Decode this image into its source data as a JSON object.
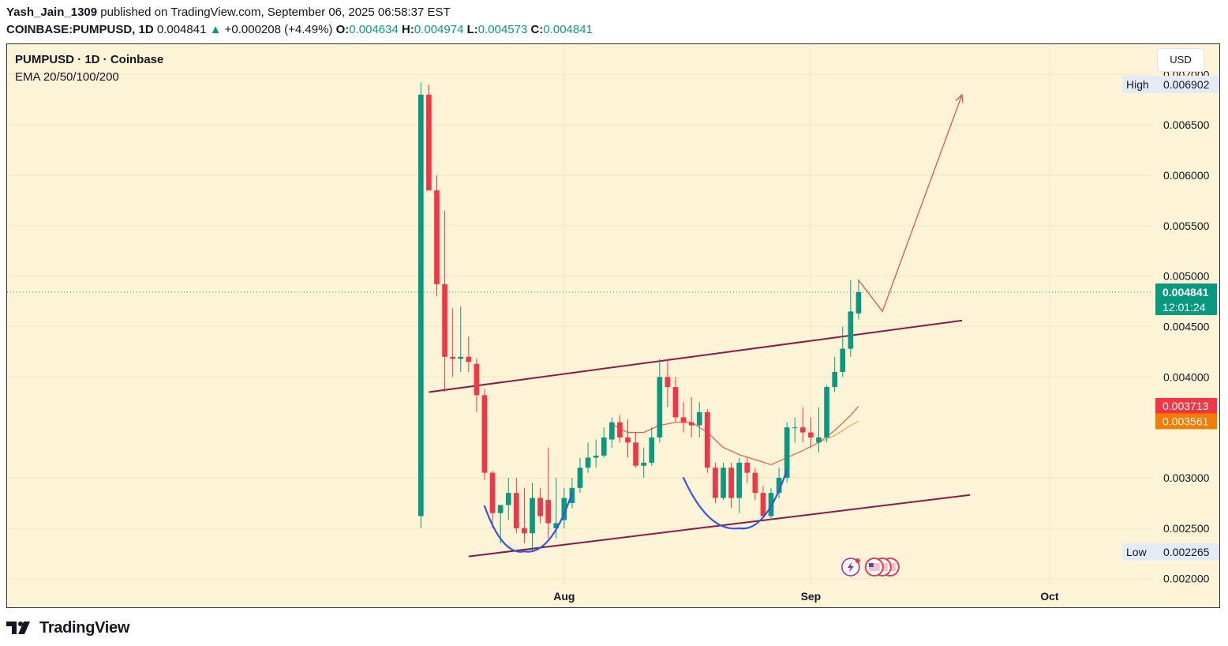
{
  "header": {
    "author": "Yash_Jain_1309",
    "published_text": " published on TradingView.com, September 06, 2025 06:58:37 EST",
    "symbol": "COINBASE:PUMPUSD, 1D",
    "last_price": "0.004841",
    "change": "+0.000208 (+4.49%)",
    "ohlc": {
      "o_label": "O:",
      "o": "0.004634",
      "h_label": "H:",
      "h": "0.004974",
      "l_label": "L:",
      "l": "0.004573",
      "c_label": "C:",
      "c": "0.004841"
    }
  },
  "legend": {
    "title": "PUMPUSD · 1D · Coinbase",
    "indicator": "EMA 20/50/100/200"
  },
  "currency_button": "USD",
  "footer": {
    "brand": "TradingView"
  },
  "colors": {
    "up": "#089981",
    "down": "#f23645",
    "background": "#fdf3d6",
    "channel": "#8b1a4a",
    "cups": "#3355e8",
    "projection": "#e8474a",
    "ema20": "#f0574c",
    "ema50": "#f5a040"
  },
  "chart_data": {
    "type": "candlestick",
    "ylim": [
      0.0017,
      0.0073
    ],
    "y_ticks": [
      "0.002000",
      "0.002500",
      "0.003000",
      "0.004000",
      "0.004500",
      "0.005000",
      "0.005500",
      "0.006000",
      "0.006500",
      "0.007000"
    ],
    "x_ticks": [
      {
        "label": "Aug",
        "date": "2025-08-01"
      },
      {
        "label": "Sep",
        "date": "2025-09-01"
      },
      {
        "label": "Oct",
        "date": "2025-10-01"
      }
    ],
    "x_range": [
      "2025-05-23",
      "2025-10-14"
    ],
    "candles": [
      {
        "date": "2025-07-14",
        "o": 0.00262,
        "h": 0.00692,
        "l": 0.0025,
        "c": 0.0068
      },
      {
        "date": "2025-07-15",
        "o": 0.0068,
        "h": 0.0069,
        "l": 0.00585,
        "c": 0.00585
      },
      {
        "date": "2025-07-16",
        "o": 0.00585,
        "h": 0.006,
        "l": 0.0048,
        "c": 0.00492
      },
      {
        "date": "2025-07-17",
        "o": 0.00492,
        "h": 0.00565,
        "l": 0.00385,
        "c": 0.0042
      },
      {
        "date": "2025-07-18",
        "o": 0.0042,
        "h": 0.00468,
        "l": 0.004,
        "c": 0.00418
      },
      {
        "date": "2025-07-19",
        "o": 0.00418,
        "h": 0.0047,
        "l": 0.00405,
        "c": 0.0042
      },
      {
        "date": "2025-07-20",
        "o": 0.0042,
        "h": 0.0044,
        "l": 0.00405,
        "c": 0.00415
      },
      {
        "date": "2025-07-21",
        "o": 0.00413,
        "h": 0.00418,
        "l": 0.00365,
        "c": 0.00382
      },
      {
        "date": "2025-07-22",
        "o": 0.00382,
        "h": 0.00388,
        "l": 0.00298,
        "c": 0.00305
      },
      {
        "date": "2025-07-23",
        "o": 0.00305,
        "h": 0.00307,
        "l": 0.0025,
        "c": 0.00265
      },
      {
        "date": "2025-07-24",
        "o": 0.00265,
        "h": 0.00272,
        "l": 0.00235,
        "c": 0.00273
      },
      {
        "date": "2025-07-25",
        "o": 0.00273,
        "h": 0.003,
        "l": 0.00258,
        "c": 0.00285
      },
      {
        "date": "2025-07-26",
        "o": 0.00285,
        "h": 0.003,
        "l": 0.00245,
        "c": 0.0025
      },
      {
        "date": "2025-07-27",
        "o": 0.0025,
        "h": 0.0029,
        "l": 0.00235,
        "c": 0.00245
      },
      {
        "date": "2025-07-28",
        "o": 0.00245,
        "h": 0.00295,
        "l": 0.00228,
        "c": 0.0028
      },
      {
        "date": "2025-07-29",
        "o": 0.0028,
        "h": 0.0029,
        "l": 0.00255,
        "c": 0.00262
      },
      {
        "date": "2025-07-30",
        "o": 0.00278,
        "h": 0.0033,
        "l": 0.0024,
        "c": 0.00255
      },
      {
        "date": "2025-07-31",
        "o": 0.0025,
        "h": 0.003,
        "l": 0.0024,
        "c": 0.00255
      },
      {
        "date": "2025-08-01",
        "o": 0.00258,
        "h": 0.0029,
        "l": 0.0025,
        "c": 0.0028
      },
      {
        "date": "2025-08-02",
        "o": 0.00275,
        "h": 0.003,
        "l": 0.0027,
        "c": 0.0029
      },
      {
        "date": "2025-08-03",
        "o": 0.0029,
        "h": 0.0032,
        "l": 0.00285,
        "c": 0.0031
      },
      {
        "date": "2025-08-04",
        "o": 0.0031,
        "h": 0.00335,
        "l": 0.00305,
        "c": 0.0032
      },
      {
        "date": "2025-08-05",
        "o": 0.0032,
        "h": 0.00338,
        "l": 0.0031,
        "c": 0.00322
      },
      {
        "date": "2025-08-06",
        "o": 0.00322,
        "h": 0.0035,
        "l": 0.0032,
        "c": 0.0034
      },
      {
        "date": "2025-08-07",
        "o": 0.00338,
        "h": 0.0036,
        "l": 0.0033,
        "c": 0.00355
      },
      {
        "date": "2025-08-08",
        "o": 0.00355,
        "h": 0.00362,
        "l": 0.00335,
        "c": 0.0034
      },
      {
        "date": "2025-08-09",
        "o": 0.0034,
        "h": 0.00358,
        "l": 0.0032,
        "c": 0.00335
      },
      {
        "date": "2025-08-10",
        "o": 0.00335,
        "h": 0.00345,
        "l": 0.0031,
        "c": 0.00312
      },
      {
        "date": "2025-08-11",
        "o": 0.00312,
        "h": 0.0033,
        "l": 0.003,
        "c": 0.00315
      },
      {
        "date": "2025-08-12",
        "o": 0.00315,
        "h": 0.0035,
        "l": 0.00312,
        "c": 0.0034
      },
      {
        "date": "2025-08-13",
        "o": 0.0034,
        "h": 0.00418,
        "l": 0.00335,
        "c": 0.004
      },
      {
        "date": "2025-08-14",
        "o": 0.004,
        "h": 0.00418,
        "l": 0.0037,
        "c": 0.0039
      },
      {
        "date": "2025-08-15",
        "o": 0.0039,
        "h": 0.004,
        "l": 0.00355,
        "c": 0.0036
      },
      {
        "date": "2025-08-16",
        "o": 0.0036,
        "h": 0.00375,
        "l": 0.00345,
        "c": 0.00355
      },
      {
        "date": "2025-08-17",
        "o": 0.00355,
        "h": 0.0038,
        "l": 0.0034,
        "c": 0.00352
      },
      {
        "date": "2025-08-18",
        "o": 0.00352,
        "h": 0.00375,
        "l": 0.0034,
        "c": 0.00365
      },
      {
        "date": "2025-08-19",
        "o": 0.00365,
        "h": 0.00368,
        "l": 0.00305,
        "c": 0.0031
      },
      {
        "date": "2025-08-20",
        "o": 0.0031,
        "h": 0.00315,
        "l": 0.00275,
        "c": 0.0028
      },
      {
        "date": "2025-08-21",
        "o": 0.0028,
        "h": 0.00315,
        "l": 0.00278,
        "c": 0.0031
      },
      {
        "date": "2025-08-22",
        "o": 0.0031,
        "h": 0.00315,
        "l": 0.0027,
        "c": 0.0028
      },
      {
        "date": "2025-08-23",
        "o": 0.0028,
        "h": 0.0032,
        "l": 0.00265,
        "c": 0.00315
      },
      {
        "date": "2025-08-24",
        "o": 0.00315,
        "h": 0.0032,
        "l": 0.00295,
        "c": 0.00305
      },
      {
        "date": "2025-08-25",
        "o": 0.00305,
        "h": 0.0031,
        "l": 0.00278,
        "c": 0.00285
      },
      {
        "date": "2025-08-26",
        "o": 0.00285,
        "h": 0.00292,
        "l": 0.0026,
        "c": 0.00262
      },
      {
        "date": "2025-08-27",
        "o": 0.00262,
        "h": 0.0029,
        "l": 0.00258,
        "c": 0.00285
      },
      {
        "date": "2025-08-28",
        "o": 0.00285,
        "h": 0.0031,
        "l": 0.0028,
        "c": 0.003
      },
      {
        "date": "2025-08-29",
        "o": 0.003,
        "h": 0.00355,
        "l": 0.00295,
        "c": 0.0035
      },
      {
        "date": "2025-08-30",
        "o": 0.0035,
        "h": 0.0036,
        "l": 0.00335,
        "c": 0.0035
      },
      {
        "date": "2025-08-31",
        "o": 0.0035,
        "h": 0.0037,
        "l": 0.00335,
        "c": 0.00345
      },
      {
        "date": "2025-09-01",
        "o": 0.00345,
        "h": 0.0036,
        "l": 0.0033,
        "c": 0.0034
      },
      {
        "date": "2025-09-02",
        "o": 0.00335,
        "h": 0.0037,
        "l": 0.00325,
        "c": 0.0034
      },
      {
        "date": "2025-09-03",
        "o": 0.0034,
        "h": 0.00392,
        "l": 0.00335,
        "c": 0.0039
      },
      {
        "date": "2025-09-04",
        "o": 0.0039,
        "h": 0.0042,
        "l": 0.00385,
        "c": 0.00405
      },
      {
        "date": "2025-09-05",
        "o": 0.00405,
        "h": 0.0045,
        "l": 0.004,
        "c": 0.00428
      },
      {
        "date": "2025-09-06",
        "o": 0.00428,
        "h": 0.00496,
        "l": 0.0042,
        "c": 0.00465
      },
      {
        "date": "2025-09-07",
        "o": 0.00463,
        "h": 0.00497,
        "l": 0.00457,
        "c": 0.00484
      }
    ],
    "ema20": [
      [
        "2025-08-07",
        0.00353
      ],
      [
        "2025-08-09",
        0.00345
      ],
      [
        "2025-08-11",
        0.00345
      ],
      [
        "2025-08-13",
        0.00352
      ],
      [
        "2025-08-15",
        0.00355
      ],
      [
        "2025-08-17",
        0.00355
      ],
      [
        "2025-08-19",
        0.00345
      ],
      [
        "2025-08-21",
        0.0033
      ],
      [
        "2025-08-23",
        0.00323
      ],
      [
        "2025-08-25",
        0.00318
      ],
      [
        "2025-08-27",
        0.00313
      ],
      [
        "2025-08-29",
        0.0032
      ],
      [
        "2025-08-31",
        0.00327
      ],
      [
        "2025-09-02",
        0.00335
      ],
      [
        "2025-09-04",
        0.00347
      ],
      [
        "2025-09-06",
        0.00362
      ],
      [
        "2025-09-07",
        0.00371
      ]
    ],
    "ema50": [
      [
        "2025-09-02",
        0.00335
      ],
      [
        "2025-09-04",
        0.00342
      ],
      [
        "2025-09-06",
        0.00352
      ],
      [
        "2025-09-07",
        0.00356
      ]
    ],
    "channel_upper": [
      [
        "2025-07-15",
        0.00385
      ],
      [
        "2025-09-20",
        0.00456
      ]
    ],
    "channel_lower": [
      [
        "2025-07-20",
        0.00222
      ],
      [
        "2025-09-21",
        0.00283
      ]
    ],
    "projection_path": [
      [
        "2025-09-07",
        0.00496
      ],
      [
        "2025-09-10",
        0.00465
      ],
      [
        "2025-09-20",
        0.0068
      ]
    ],
    "cup_left": [
      [
        "2025-07-22",
        0.00272
      ],
      [
        "2025-07-27",
        0.00227
      ],
      [
        "2025-08-02",
        0.00285
      ]
    ],
    "cup_right": [
      [
        "2025-08-16",
        0.003
      ],
      [
        "2025-08-23",
        0.0025
      ],
      [
        "2025-08-29",
        0.00308
      ]
    ],
    "last_price_label": "0.004841",
    "countdown_label": "12:01:24",
    "ema_labels": [
      {
        "value": 0.003713,
        "text": "0.003713",
        "color": "#f23645"
      },
      {
        "value": 0.003561,
        "text": "0.003561",
        "color": "#f57c00"
      }
    ],
    "high": {
      "label": "High",
      "value": 0.006902,
      "text": "0.006902"
    },
    "low": {
      "label": "Low",
      "value": 0.002265,
      "text": "0.002265"
    }
  }
}
